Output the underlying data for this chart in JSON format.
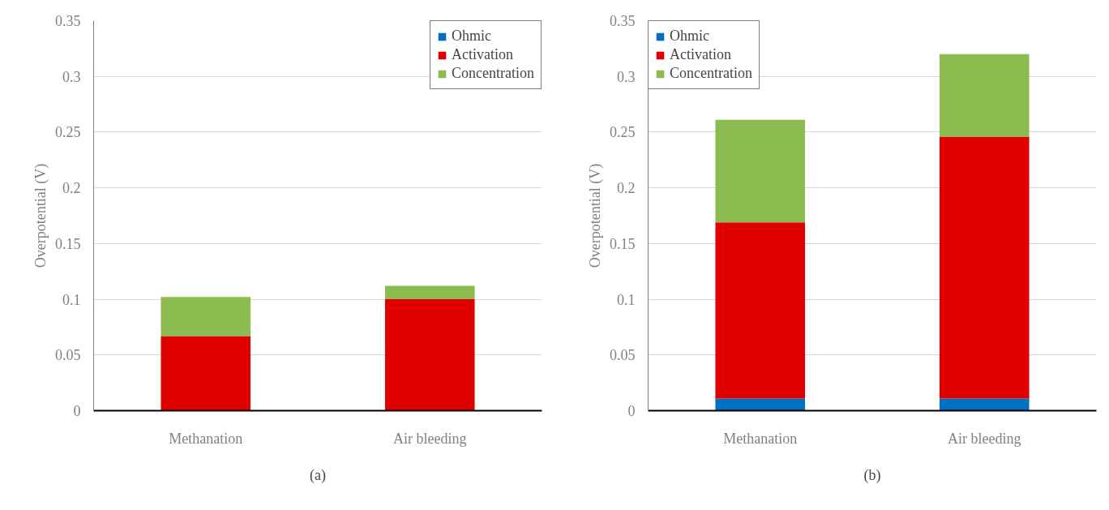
{
  "chart_data": [
    {
      "type": "bar",
      "stacked": true,
      "ylabel": "Overpotential (V)",
      "categories": [
        "Methanation",
        "Air bleeding"
      ],
      "series": [
        {
          "name": "Ohmic",
          "color": "#0070c0",
          "values": [
            null,
            null
          ]
        },
        {
          "name": "Activation",
          "color": "#e00000",
          "values": [
            0.067,
            0.1
          ]
        },
        {
          "name": "Concentration",
          "color": "#8cbb50",
          "values": [
            0.035,
            0.012
          ]
        }
      ],
      "ylim": [
        0,
        0.35
      ],
      "yticks": [
        0,
        0.05,
        0.1,
        0.15,
        0.2,
        0.25,
        0.3,
        0.35
      ],
      "grid": "y",
      "legend": "top right",
      "annotations": [
        "(a)"
      ]
    },
    {
      "type": "bar",
      "stacked": true,
      "ylabel": "Overpotential (V)",
      "categories": [
        "Methanation",
        "Air bleeding"
      ],
      "series": [
        {
          "name": "Ohmic",
          "color": "#0070c0",
          "values": [
            0.011,
            0.011
          ]
        },
        {
          "name": "Activation",
          "color": "#e00000",
          "values": [
            0.158,
            0.235
          ]
        },
        {
          "name": "Concentration",
          "color": "#8cbb50",
          "values": [
            0.092,
            0.074
          ]
        }
      ],
      "ylim": [
        0,
        0.35
      ],
      "yticks": [
        0,
        0.05,
        0.1,
        0.15,
        0.2,
        0.25,
        0.3,
        0.35
      ],
      "grid": "y",
      "legend": "top left",
      "annotations": [
        "(b)"
      ]
    }
  ]
}
